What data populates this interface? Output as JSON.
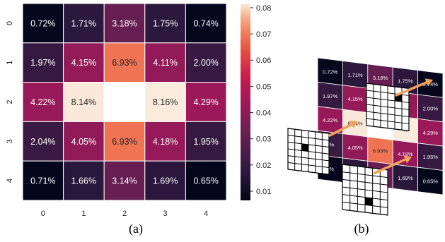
{
  "chart_data": [
    {
      "type": "heatmap",
      "panel_label": "(a)",
      "x_ticks": [
        "0",
        "1",
        "2",
        "3",
        "4"
      ],
      "y_ticks": [
        "0",
        "1",
        "2",
        "3",
        "4"
      ],
      "values": [
        [
          0.0072,
          0.0171,
          0.0318,
          0.0175,
          0.0074
        ],
        [
          0.0197,
          0.0415,
          0.0693,
          0.0411,
          0.02
        ],
        [
          0.0422,
          0.0814,
          null,
          0.0816,
          0.0429
        ],
        [
          0.0204,
          0.0405,
          0.0693,
          0.0418,
          0.0195
        ],
        [
          0.0071,
          0.0166,
          0.0314,
          0.0169,
          0.0065
        ]
      ],
      "cell_labels": [
        [
          "0.72%",
          "1.71%",
          "3.18%",
          "1.75%",
          "0.74%"
        ],
        [
          "1.97%",
          "4.15%",
          "6.93%",
          "4.11%",
          "2.00%"
        ],
        [
          "4.22%",
          "8.14%",
          "",
          "8.16%",
          "4.29%"
        ],
        [
          "2.04%",
          "4.05%",
          "6.93%",
          "4.18%",
          "1.95%"
        ],
        [
          "0.71%",
          "1.66%",
          "3.14%",
          "1.69%",
          "0.65%"
        ]
      ],
      "colorbar": {
        "range": [
          0.0065,
          0.0816
        ],
        "ticks": [
          "0.01",
          "0.02",
          "0.03",
          "0.04",
          "0.05",
          "0.06",
          "0.07",
          "0.08"
        ],
        "tick_values": [
          0.01,
          0.02,
          0.03,
          0.04,
          0.05,
          0.06,
          0.07,
          0.08
        ]
      },
      "colormap": "rocket"
    },
    {
      "type": "diagram",
      "panel_label": "(b)",
      "cell_labels": [
        [
          "0.72%",
          "1.71%",
          "3.18%",
          "1.75%",
          "0.74%"
        ],
        [
          "1.97%",
          "4.15%",
          "",
          "",
          "2.00%"
        ],
        [
          "4.22%",
          "8.14%",
          "",
          "%",
          "4.29%"
        ],
        [
          "4%",
          "4.05%",
          "6.93%",
          "4.18%",
          "1.95%"
        ],
        [
          "1%",
          "",
          "",
          "1.69%",
          "0.65%"
        ]
      ]
    }
  ],
  "colors": {
    "arrow": "#f0a15a",
    "grid_line": "#000000",
    "center_fill": "#ffffff"
  }
}
